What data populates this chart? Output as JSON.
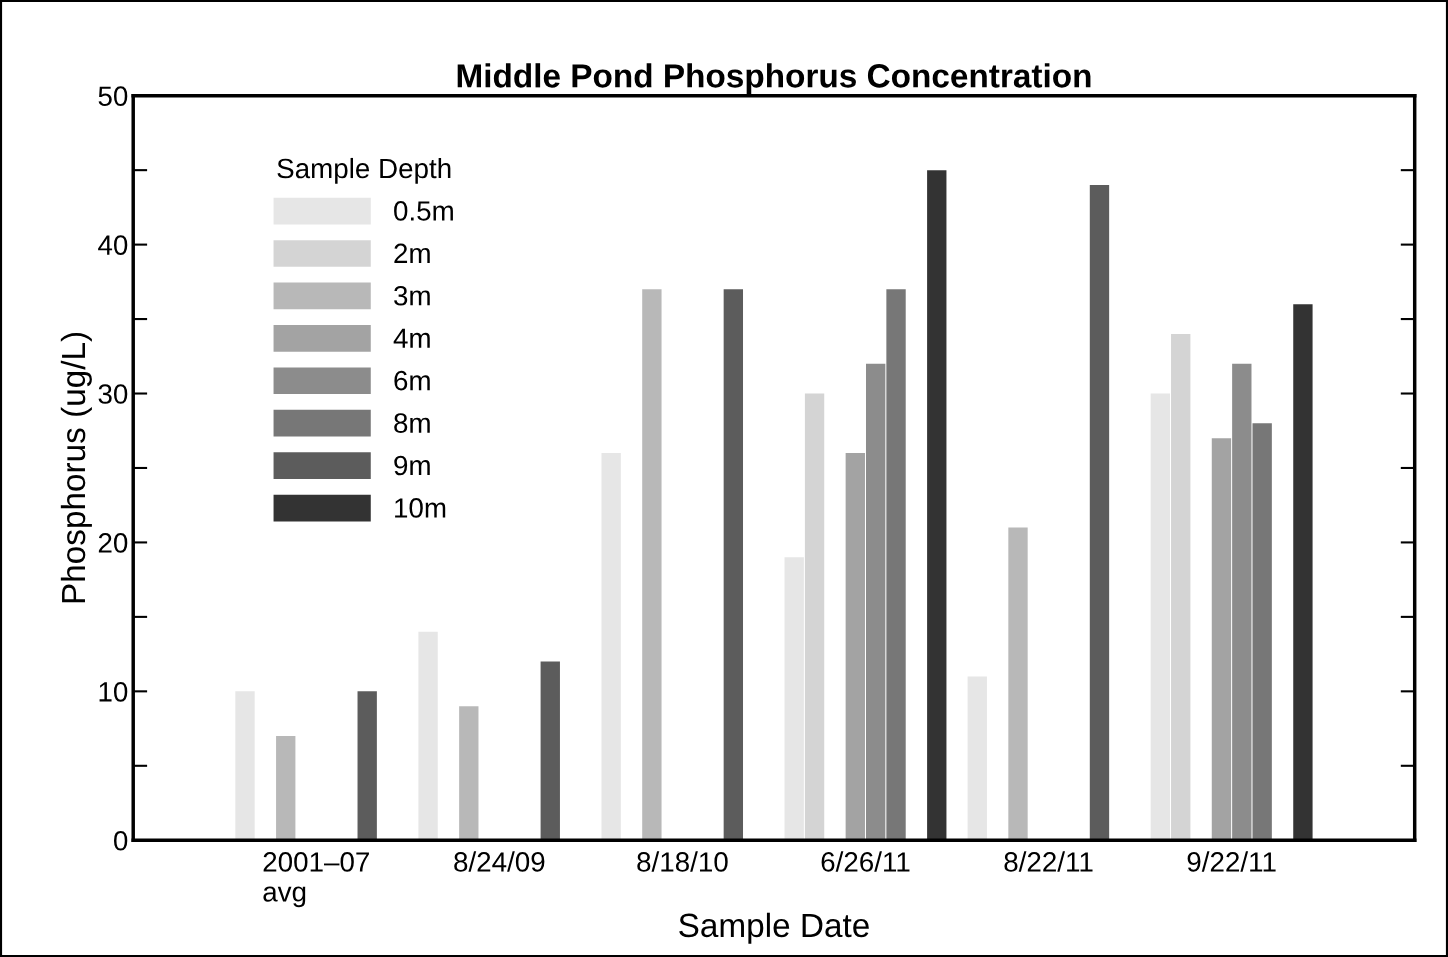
{
  "chart_data": {
    "type": "bar",
    "title": "Middle Pond Phosphorus Concentration",
    "xlabel": "Sample Date",
    "ylabel": "Phosphorus (ug/L)",
    "legend_title": "Sample Depth",
    "categories": [
      "2001–07\navg",
      "8/24/09",
      "8/18/10",
      "6/26/11",
      "8/22/11",
      "9/22/11"
    ],
    "series": [
      {
        "name": "0.5m",
        "color": "#e6e6e6",
        "values": [
          10,
          14,
          26,
          19,
          11,
          30
        ]
      },
      {
        "name": "2m",
        "color": "#d4d4d4",
        "values": [
          null,
          null,
          null,
          30,
          null,
          34
        ]
      },
      {
        "name": "3m",
        "color": "#b8b8b8",
        "values": [
          7,
          9,
          37,
          null,
          21,
          null
        ]
      },
      {
        "name": "4m",
        "color": "#a3a3a3",
        "values": [
          null,
          null,
          null,
          26,
          null,
          27
        ]
      },
      {
        "name": "6m",
        "color": "#8c8c8c",
        "values": [
          null,
          null,
          null,
          32,
          null,
          32
        ]
      },
      {
        "name": "8m",
        "color": "#777777",
        "values": [
          null,
          null,
          null,
          37,
          null,
          28
        ]
      },
      {
        "name": "9m",
        "color": "#5c5c5c",
        "values": [
          10,
          12,
          37,
          null,
          44,
          null
        ]
      },
      {
        "name": "10m",
        "color": "#333333",
        "values": [
          null,
          null,
          null,
          45,
          null,
          36
        ]
      }
    ],
    "ylim": [
      0,
      50
    ],
    "yticks": [
      0,
      {
        "value": 5,
        "label": null
      },
      10,
      {
        "value": 15,
        "label": null
      },
      20,
      {
        "value": 25,
        "label": null
      },
      30,
      {
        "value": 35,
        "label": null
      },
      40,
      {
        "value": 45,
        "label": null
      },
      50
    ],
    "grid": false,
    "legend": "top left"
  }
}
